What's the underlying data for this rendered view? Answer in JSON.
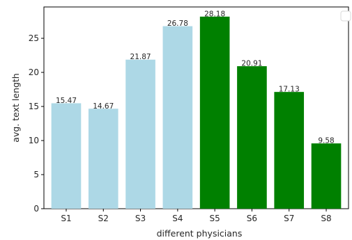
{
  "chart_data": {
    "type": "bar",
    "title": "",
    "xlabel": "different physicians",
    "ylabel": "avg. text length",
    "categories": [
      "S1",
      "S2",
      "S3",
      "S4",
      "S5",
      "S6",
      "S7",
      "S8"
    ],
    "values": [
      15.47,
      14.67,
      21.87,
      26.78,
      28.18,
      20.91,
      17.13,
      9.58
    ],
    "value_labels": [
      "15.47",
      "14.67",
      "21.87",
      "26.78",
      "28.18",
      "20.91",
      "17.13",
      "9.58"
    ],
    "bar_colors": [
      "#add8e6",
      "#add8e6",
      "#add8e6",
      "#add8e6",
      "#008000",
      "#008000",
      "#008000",
      "#008000"
    ],
    "ylim": [
      0,
      29.6
    ],
    "yticks": [
      0,
      5,
      10,
      15,
      20,
      25
    ],
    "grid": false,
    "legend": {
      "placement": "top-right",
      "entries": []
    }
  }
}
